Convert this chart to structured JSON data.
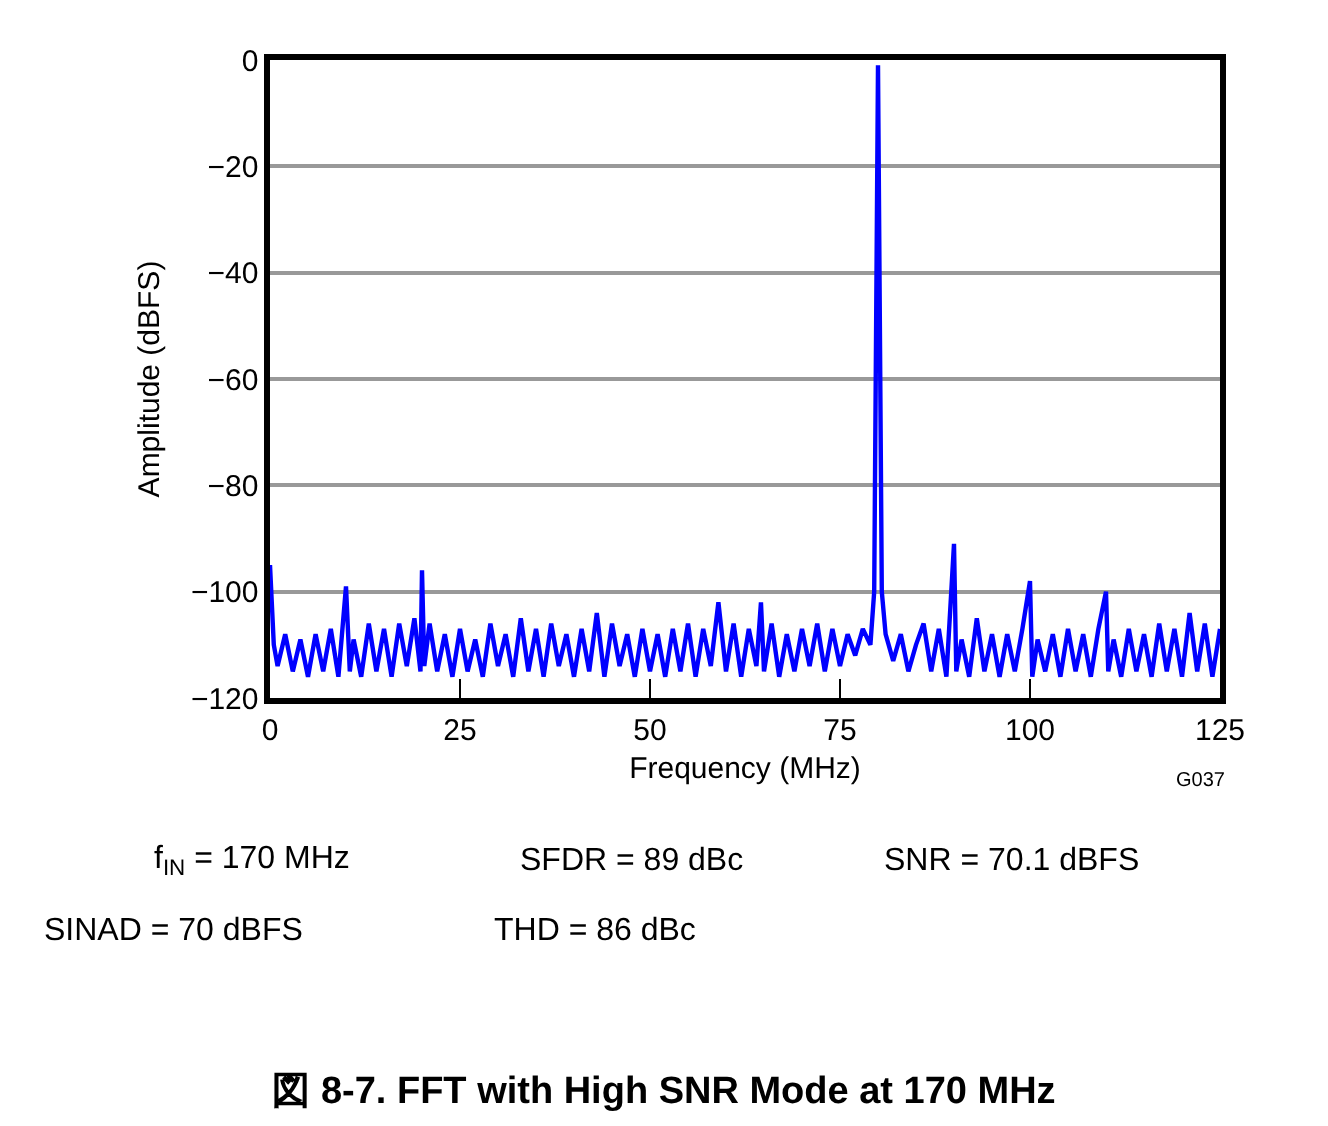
{
  "chart_data": {
    "type": "line",
    "title": "図 8-7. FFT with High SNR Mode at 170 MHz",
    "xlabel": "Frequency (MHz)",
    "ylabel": "Amplitude (dBFS)",
    "annotations": [
      "G037",
      "f$_{IN}$ = 170 MHz",
      "SFDR = 89 dBc",
      "SNR = 70.1 dBFS",
      "SINAD = 70 dBFS",
      "THD = 86 dBc"
    ],
    "xlim": [
      0,
      125
    ],
    "xticks": [
      0,
      25,
      50,
      75,
      100,
      125
    ],
    "ylim": [
      -120,
      0
    ],
    "yticks": [
      {
        "value": -120,
        "label": "−120"
      },
      {
        "value": -100,
        "label": "−100"
      },
      {
        "value": -80,
        "label": "−80"
      },
      {
        "value": -60,
        "label": "−60"
      },
      {
        "value": -40,
        "label": "−40"
      },
      {
        "value": -20,
        "label": "−20"
      },
      0
    ],
    "grid": "y",
    "marker": "none",
    "line_style": "solid",
    "series": [
      {
        "color": "#0000ff",
        "x": [
          0,
          0.5,
          1,
          2,
          3,
          4,
          5,
          6,
          7,
          8,
          9,
          10,
          10.5,
          11,
          12,
          13,
          14,
          15,
          16,
          17,
          18,
          19,
          19.8,
          20,
          20.3,
          21,
          22,
          23,
          24,
          25,
          26,
          27,
          28,
          29,
          30,
          31,
          32,
          33,
          34,
          35,
          36,
          37,
          38,
          39,
          40,
          41,
          42,
          43,
          44,
          45,
          46,
          47,
          48,
          49,
          50,
          51,
          52,
          53,
          54,
          55,
          56,
          57,
          58,
          59,
          60,
          61,
          62,
          63,
          64,
          64.6,
          65,
          66,
          67,
          68,
          69,
          70,
          71,
          72,
          73,
          74,
          75,
          76,
          77,
          78,
          79,
          79.5,
          80,
          80.5,
          81,
          82,
          83,
          84,
          85,
          86,
          87,
          88,
          89,
          90,
          90.3,
          91,
          92,
          93,
          94,
          95,
          96,
          97,
          98,
          99,
          100,
          100.3,
          101,
          102,
          103,
          104,
          105,
          106,
          107,
          108,
          109,
          110,
          110.3,
          111,
          112,
          113,
          114,
          115,
          116,
          117,
          118,
          119,
          120,
          121,
          122,
          123,
          124,
          125
        ],
        "values": [
          -95,
          -110,
          -114,
          -108,
          -115,
          -109,
          -116,
          -108,
          -115,
          -107,
          -116,
          -99,
          -115,
          -109,
          -116,
          -106,
          -115,
          -107,
          -116,
          -106,
          -114,
          -105,
          -115,
          -96,
          -114,
          -106,
          -115,
          -108,
          -116,
          -107,
          -115,
          -109,
          -116,
          -106,
          -114,
          -108,
          -116,
          -105,
          -115,
          -107,
          -116,
          -106,
          -114,
          -108,
          -116,
          -107,
          -115,
          -104,
          -116,
          -106,
          -114,
          -108,
          -116,
          -107,
          -115,
          -108,
          -116,
          -107,
          -115,
          -106,
          -116,
          -107,
          -114,
          -102,
          -115,
          -106,
          -116,
          -107,
          -114,
          -102,
          -115,
          -106,
          -116,
          -108,
          -115,
          -107,
          -114,
          -106,
          -115,
          -107,
          -114,
          -108,
          -112,
          -107,
          -110,
          -100,
          -1,
          -100,
          -108,
          -113,
          -108,
          -115,
          -110,
          -106,
          -115,
          -107,
          -116,
          -91,
          -115,
          -109,
          -116,
          -105,
          -115,
          -108,
          -116,
          -108,
          -115,
          -107,
          -98,
          -116,
          -109,
          -115,
          -108,
          -116,
          -107,
          -115,
          -108,
          -116,
          -107,
          -100,
          -115,
          -109,
          -116,
          -107,
          -115,
          -108,
          -116,
          -106,
          -115,
          -107,
          -116,
          -104,
          -115,
          -106,
          -116,
          -107
        ]
      }
    ]
  }
}
